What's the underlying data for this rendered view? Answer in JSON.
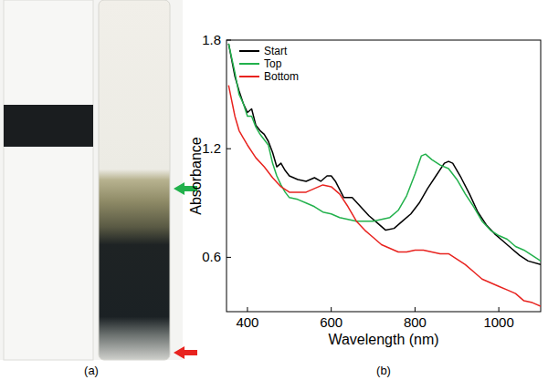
{
  "panel_labels": [
    "(a)",
    "(b)"
  ],
  "chart_data": {
    "type": "line",
    "x_label": "Wavelength (nm)",
    "y_label": "Absorbance",
    "xlim": [
      350,
      1100
    ],
    "ylim": [
      0.3,
      1.8
    ],
    "xticks": [
      400,
      600,
      800,
      1000
    ],
    "yticks": [
      0.6,
      1.2,
      1.8
    ],
    "legend": "top-left",
    "grid": false,
    "series": [
      {
        "name": "Start",
        "color": "#000000",
        "x": [
          355,
          370,
          380,
          390,
          400,
          410,
          420,
          430,
          440,
          450,
          460,
          470,
          480,
          490,
          500,
          520,
          540,
          560,
          575,
          590,
          600,
          610,
          630,
          650,
          670,
          690,
          710,
          730,
          750,
          770,
          790,
          810,
          830,
          850,
          870,
          880,
          890,
          910,
          930,
          950,
          970,
          990,
          1010,
          1030,
          1050,
          1070,
          1100
        ],
        "values": [
          1.78,
          1.6,
          1.52,
          1.45,
          1.4,
          1.42,
          1.33,
          1.3,
          1.28,
          1.24,
          1.18,
          1.1,
          1.12,
          1.08,
          1.05,
          1.03,
          1.02,
          1.04,
          1.02,
          1.05,
          1.05,
          1.02,
          0.93,
          0.93,
          0.88,
          0.83,
          0.79,
          0.75,
          0.76,
          0.8,
          0.84,
          0.9,
          0.98,
          1.05,
          1.12,
          1.13,
          1.12,
          1.04,
          0.95,
          0.85,
          0.78,
          0.73,
          0.69,
          0.65,
          0.61,
          0.58,
          0.56
        ]
      },
      {
        "name": "Top",
        "color": "#22b14c",
        "x": [
          355,
          370,
          380,
          390,
          400,
          410,
          420,
          430,
          440,
          450,
          460,
          470,
          480,
          490,
          500,
          520,
          540,
          560,
          580,
          600,
          620,
          640,
          660,
          680,
          700,
          720,
          740,
          760,
          780,
          800,
          815,
          825,
          840,
          860,
          880,
          900,
          920,
          940,
          960,
          980,
          1000,
          1020,
          1040,
          1060,
          1080,
          1100
        ],
        "values": [
          1.78,
          1.62,
          1.5,
          1.45,
          1.38,
          1.38,
          1.32,
          1.28,
          1.25,
          1.22,
          1.12,
          1.05,
          1.0,
          0.96,
          0.93,
          0.92,
          0.9,
          0.88,
          0.85,
          0.84,
          0.82,
          0.81,
          0.8,
          0.8,
          0.8,
          0.81,
          0.82,
          0.86,
          0.94,
          1.06,
          1.16,
          1.17,
          1.14,
          1.11,
          1.09,
          1.03,
          0.95,
          0.88,
          0.8,
          0.75,
          0.72,
          0.7,
          0.66,
          0.64,
          0.61,
          0.58
        ]
      },
      {
        "name": "Bottom",
        "color": "#e8231f",
        "x": [
          355,
          370,
          380,
          390,
          400,
          420,
          440,
          460,
          480,
          500,
          520,
          540,
          560,
          580,
          600,
          620,
          640,
          660,
          680,
          700,
          720,
          740,
          760,
          780,
          800,
          820,
          840,
          860,
          880,
          900,
          920,
          940,
          960,
          980,
          1000,
          1020,
          1040,
          1060,
          1080,
          1100
        ],
        "values": [
          1.55,
          1.38,
          1.3,
          1.26,
          1.22,
          1.15,
          1.1,
          1.04,
          0.99,
          0.96,
          0.96,
          0.96,
          0.98,
          1.0,
          0.99,
          0.95,
          0.88,
          0.8,
          0.75,
          0.71,
          0.67,
          0.65,
          0.63,
          0.63,
          0.64,
          0.64,
          0.63,
          0.62,
          0.62,
          0.59,
          0.56,
          0.52,
          0.48,
          0.46,
          0.44,
          0.42,
          0.4,
          0.36,
          0.35,
          0.33
        ]
      }
    ]
  }
}
